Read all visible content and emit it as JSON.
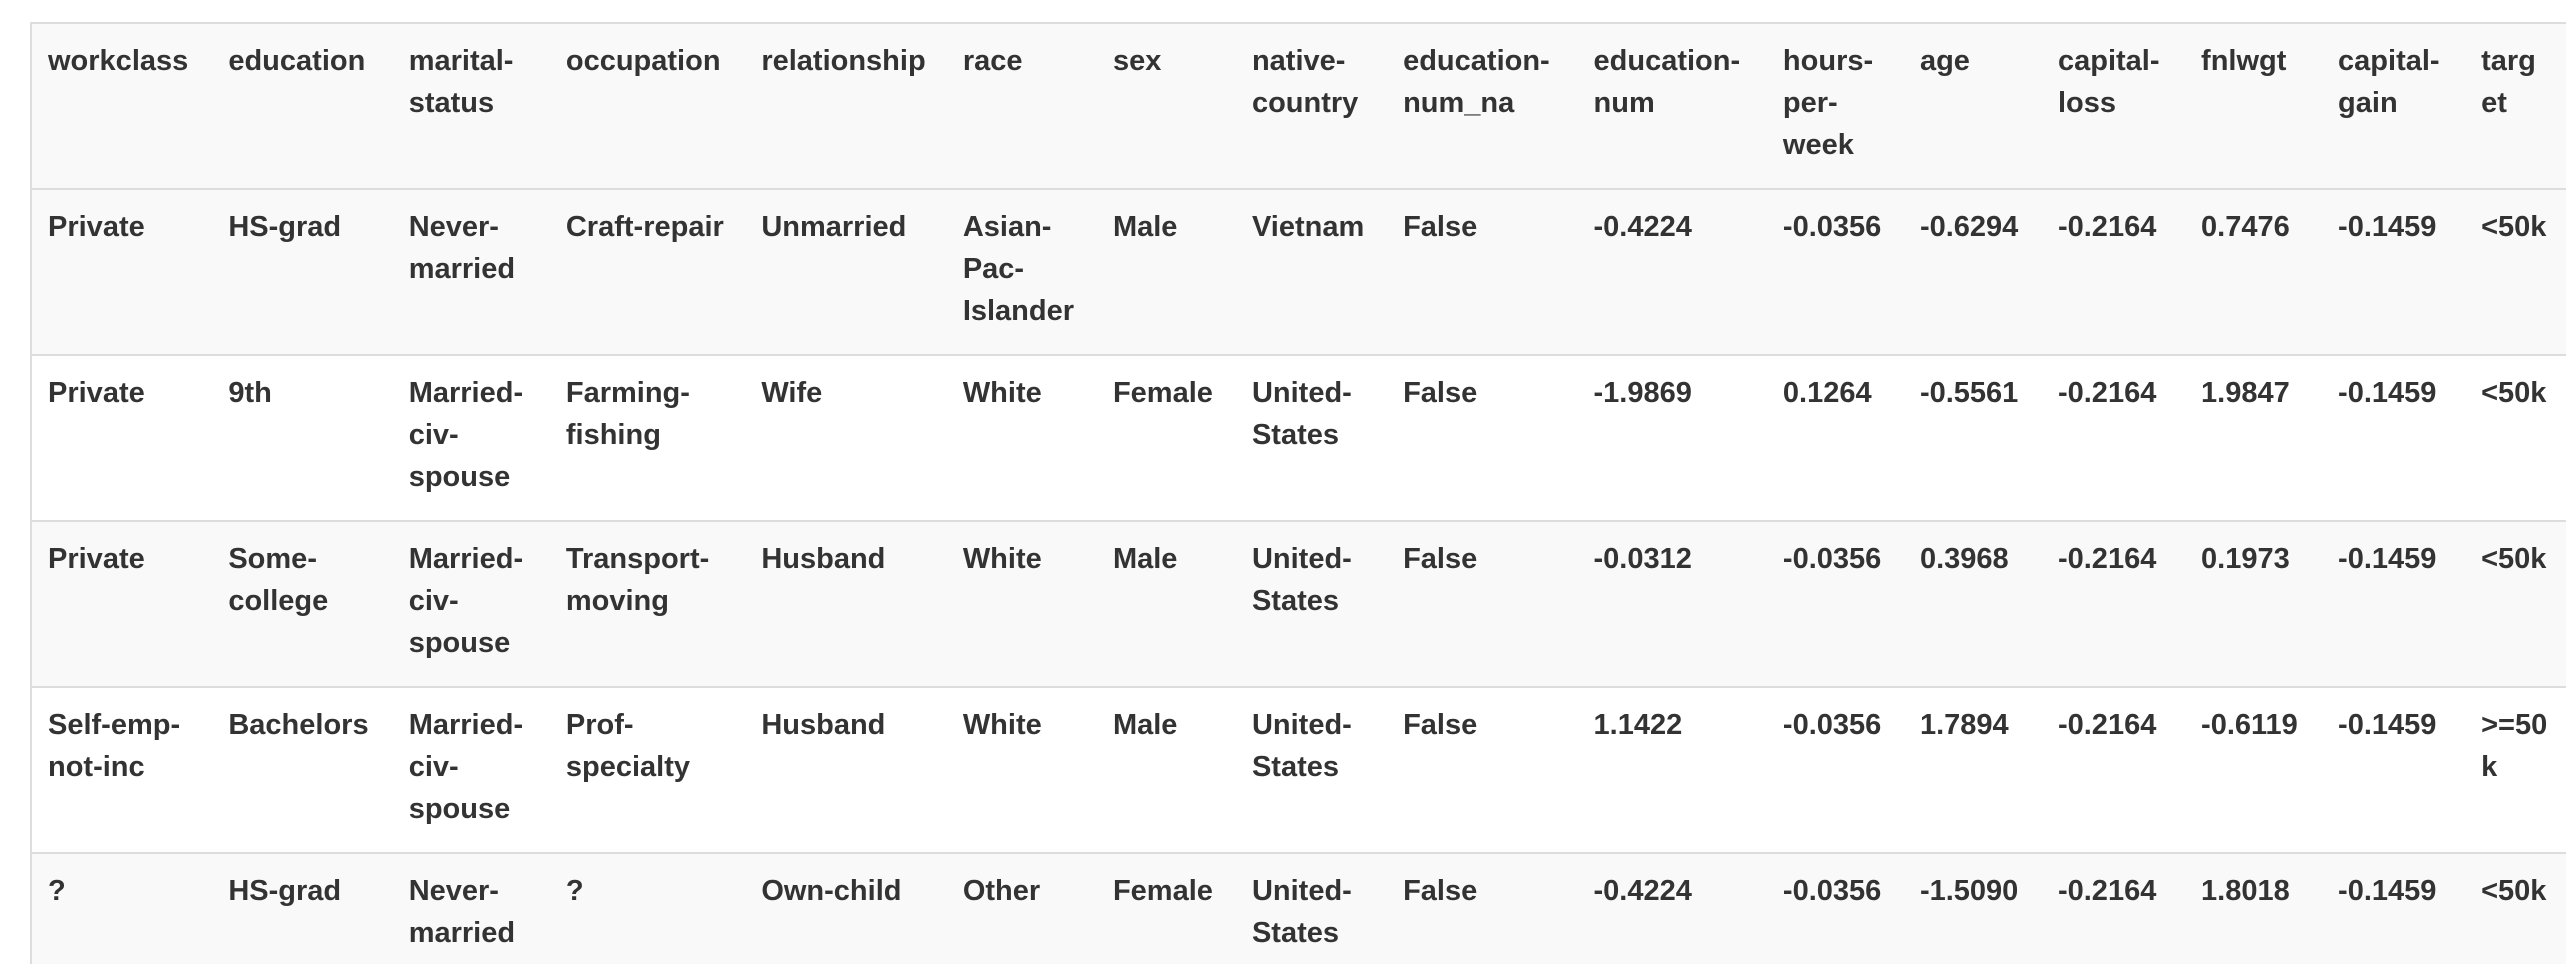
{
  "table": {
    "columns": [
      "workclass",
      "education",
      "marital-status",
      "occupation",
      "relationship",
      "race",
      "sex",
      "native-country",
      "education-num_na",
      "education-num",
      "hours-per-week",
      "age",
      "capital-loss",
      "fnlwgt",
      "capital-gain",
      "target"
    ],
    "rows": [
      [
        "Private",
        "HS-grad",
        "Never-married",
        "Craft-repair",
        "Unmarried",
        "Asian-Pac-Islander",
        "Male",
        "Vietnam",
        "False",
        "-0.4224",
        "-0.0356",
        "-0.6294",
        "-0.2164",
        "0.7476",
        "-0.1459",
        "<50k"
      ],
      [
        "Private",
        "9th",
        "Married-civ-spouse",
        "Farming-fishing",
        "Wife",
        "White",
        "Female",
        "United-States",
        "False",
        "-1.9869",
        "0.1264",
        "-0.5561",
        "-0.2164",
        "1.9847",
        "-0.1459",
        "<50k"
      ],
      [
        "Private",
        "Some-college",
        "Married-civ-spouse",
        "Transport-moving",
        "Husband",
        "White",
        "Male",
        "United-States",
        "False",
        "-0.0312",
        "-0.0356",
        "0.3968",
        "-0.2164",
        "0.1973",
        "-0.1459",
        "<50k"
      ],
      [
        "Self-emp-not-inc",
        "Bachelors",
        "Married-civ-spouse",
        "Prof-specialty",
        "Husband",
        "White",
        "Male",
        "United-States",
        "False",
        "1.1422",
        "-0.0356",
        "1.7894",
        "-0.2164",
        "-0.6119",
        "-0.1459",
        ">=50k"
      ],
      [
        "?",
        "HS-grad",
        "Never-married",
        "?",
        "Own-child",
        "Other",
        "Female",
        "United-States",
        "False",
        "-0.4224",
        "-0.0356",
        "-1.5090",
        "-0.2164",
        "1.8018",
        "-0.1459",
        "<50k"
      ]
    ]
  }
}
